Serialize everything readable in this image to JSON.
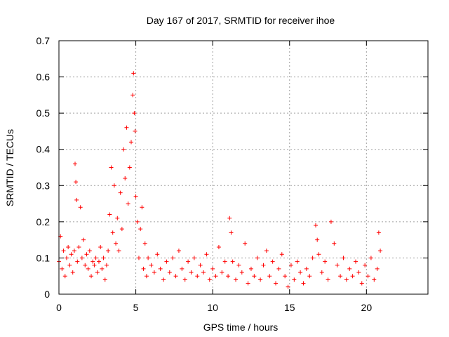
{
  "chart_data": {
    "type": "scatter",
    "title": "Day 167 of 2017, SRMTID for receiver ihoe",
    "xlabel": "GPS time / hours",
    "ylabel": "SRMTID / TECUs",
    "xlim": [
      0,
      24
    ],
    "ylim": [
      0,
      0.7
    ],
    "xticks": [
      0,
      5,
      10,
      15,
      20
    ],
    "yticks": [
      0,
      0.1,
      0.2,
      0.3,
      0.4,
      0.5,
      0.6,
      0.7
    ],
    "xtick_labels": [
      "0",
      "5",
      "10",
      "15",
      "20"
    ],
    "ytick_labels": [
      "0",
      "0.1",
      "0.2",
      "0.3",
      "0.4",
      "0.5",
      "0.6",
      "0.7"
    ],
    "grid": true,
    "marker": "+",
    "color": "#ff0000",
    "series": [
      {
        "name": "SRMTID",
        "x": [
          0.0,
          0.1,
          0.2,
          0.3,
          0.4,
          0.5,
          0.6,
          0.7,
          0.8,
          0.9,
          1.0,
          1.05,
          1.1,
          1.15,
          1.2,
          1.3,
          1.4,
          1.5,
          1.6,
          1.7,
          1.8,
          1.9,
          2.0,
          2.1,
          2.2,
          2.3,
          2.4,
          2.5,
          2.6,
          2.7,
          2.8,
          2.9,
          3.0,
          3.1,
          3.2,
          3.3,
          3.4,
          3.5,
          3.6,
          3.7,
          3.8,
          3.9,
          4.0,
          4.1,
          4.2,
          4.3,
          4.4,
          4.5,
          4.6,
          4.7,
          4.8,
          4.85,
          4.9,
          4.95,
          5.0,
          5.1,
          5.2,
          5.3,
          5.4,
          5.5,
          5.6,
          5.7,
          5.8,
          6.0,
          6.2,
          6.4,
          6.6,
          6.8,
          7.0,
          7.2,
          7.4,
          7.6,
          7.8,
          8.0,
          8.2,
          8.4,
          8.6,
          8.8,
          9.0,
          9.2,
          9.4,
          9.6,
          9.8,
          10.0,
          10.2,
          10.4,
          10.6,
          10.8,
          11.0,
          11.1,
          11.2,
          11.3,
          11.5,
          11.7,
          11.9,
          12.1,
          12.3,
          12.5,
          12.7,
          12.9,
          13.1,
          13.3,
          13.5,
          13.7,
          13.9,
          14.1,
          14.3,
          14.5,
          14.7,
          14.9,
          15.1,
          15.3,
          15.5,
          15.7,
          15.9,
          16.1,
          16.3,
          16.5,
          16.7,
          16.8,
          16.9,
          17.1,
          17.3,
          17.5,
          17.7,
          17.9,
          18.1,
          18.3,
          18.5,
          18.7,
          18.9,
          19.1,
          19.3,
          19.5,
          19.7,
          19.9,
          20.1,
          20.3,
          20.5,
          20.7,
          20.8,
          20.9
        ],
        "y": [
          0.09,
          0.16,
          0.07,
          0.12,
          0.05,
          0.1,
          0.13,
          0.08,
          0.11,
          0.06,
          0.12,
          0.36,
          0.31,
          0.26,
          0.09,
          0.13,
          0.24,
          0.1,
          0.15,
          0.08,
          0.11,
          0.07,
          0.12,
          0.05,
          0.09,
          0.08,
          0.1,
          0.06,
          0.09,
          0.13,
          0.07,
          0.1,
          0.04,
          0.08,
          0.12,
          0.22,
          0.35,
          0.17,
          0.3,
          0.14,
          0.21,
          0.12,
          0.28,
          0.18,
          0.4,
          0.32,
          0.46,
          0.25,
          0.35,
          0.42,
          0.55,
          0.61,
          0.5,
          0.45,
          0.27,
          0.2,
          0.1,
          0.18,
          0.24,
          0.07,
          0.14,
          0.05,
          0.1,
          0.08,
          0.06,
          0.11,
          0.07,
          0.04,
          0.09,
          0.06,
          0.1,
          0.05,
          0.12,
          0.07,
          0.04,
          0.09,
          0.06,
          0.1,
          0.05,
          0.08,
          0.06,
          0.11,
          0.04,
          0.07,
          0.05,
          0.13,
          0.06,
          0.09,
          0.05,
          0.21,
          0.17,
          0.09,
          0.04,
          0.08,
          0.06,
          0.14,
          0.03,
          0.07,
          0.05,
          0.1,
          0.04,
          0.08,
          0.12,
          0.05,
          0.09,
          0.03,
          0.07,
          0.11,
          0.05,
          0.02,
          0.08,
          0.04,
          0.09,
          0.06,
          0.03,
          0.07,
          0.05,
          0.1,
          0.19,
          0.15,
          0.11,
          0.06,
          0.09,
          0.04,
          0.2,
          0.14,
          0.08,
          0.05,
          0.1,
          0.04,
          0.07,
          0.05,
          0.09,
          0.06,
          0.03,
          0.08,
          0.05,
          0.1,
          0.04,
          0.07,
          0.17,
          0.12
        ]
      }
    ]
  }
}
